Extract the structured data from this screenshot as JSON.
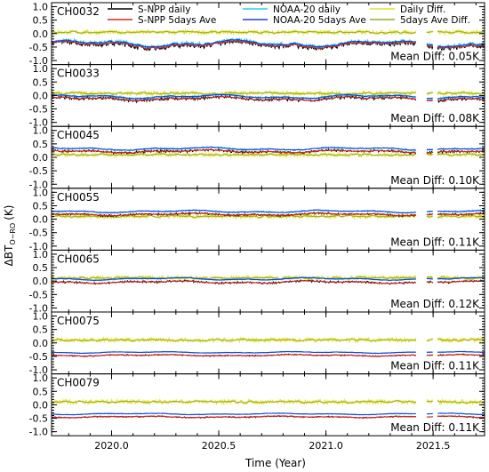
{
  "chart_data": {
    "type": "line",
    "xlabel": "Time (Year)",
    "ylabel": "ΔBT",
    "ylabel_sub": "O−RO",
    "ylabel_unit": "(K)",
    "xlim": [
      2019.72,
      2021.74
    ],
    "x_ticks": [
      "2020.0",
      "2020.5",
      "2021.0",
      "2021.5"
    ],
    "y_ticks": [
      "1.0",
      "0.5",
      "0.0",
      "-0.5",
      "-1.0"
    ],
    "ylim": [
      -1.15,
      1.15
    ],
    "legend": {
      "snpp_daily": "S-NPP daily",
      "snpp_5day": "S-NPP 5days Ave",
      "noaa20_daily": "NOAA-20 daily",
      "noaa20_5day": "NOAA-20 5days Ave",
      "diff_daily": "Daily Diff.",
      "diff_5day": "5days Ave Diff."
    },
    "colors": {
      "snpp_daily": "#000000",
      "snpp_5day": "#e0231c",
      "noaa20_daily": "#22d3e6",
      "noaa20_5day": "#1f3fd8",
      "diff_daily": "#e2e22a",
      "diff_5day": "#9aaa28"
    },
    "panels": [
      {
        "channel": "CH0032",
        "mean_diff": "Mean Diff: 0.05K",
        "snpp_base": -0.42,
        "noaa_base": -0.37,
        "diff_base": 0.05,
        "variability": 0.14
      },
      {
        "channel": "CH0033",
        "mean_diff": "Mean Diff: 0.08K",
        "snpp_base": -0.12,
        "noaa_base": -0.04,
        "diff_base": 0.08,
        "variability": 0.08
      },
      {
        "channel": "CH0045",
        "mean_diff": "Mean Diff: 0.10K",
        "snpp_base": 0.22,
        "noaa_base": 0.32,
        "diff_base": 0.1,
        "variability": 0.06
      },
      {
        "channel": "CH0055",
        "mean_diff": "Mean Diff: 0.11K",
        "snpp_base": 0.18,
        "noaa_base": 0.29,
        "diff_base": 0.11,
        "variability": 0.05
      },
      {
        "channel": "CH0065",
        "mean_diff": "Mean Diff: 0.12K",
        "snpp_base": -0.04,
        "noaa_base": 0.08,
        "diff_base": 0.12,
        "variability": 0.05
      },
      {
        "channel": "CH0075",
        "mean_diff": "Mean Diff: 0.11K",
        "snpp_base": -0.46,
        "noaa_base": -0.35,
        "diff_base": 0.11,
        "variability": 0.03
      },
      {
        "channel": "CH0079",
        "mean_diff": "Mean Diff: 0.11K",
        "snpp_base": -0.45,
        "noaa_base": -0.34,
        "diff_base": 0.11,
        "variability": 0.03
      }
    ],
    "gap_ranges": [
      [
        2021.42,
        2021.47
      ],
      [
        2021.5,
        2021.52
      ]
    ]
  }
}
